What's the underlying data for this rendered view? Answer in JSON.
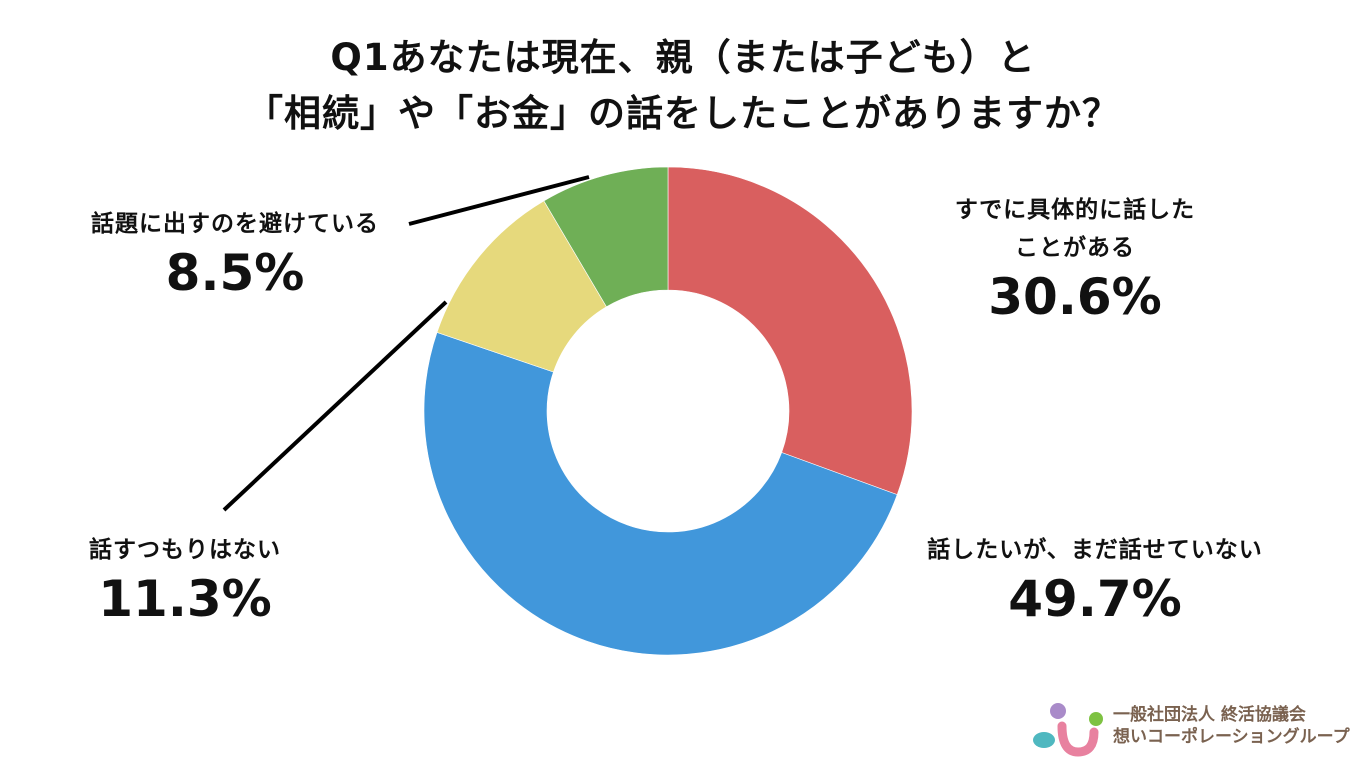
{
  "title": {
    "line1": "Q1あなたは現在、親（または子ども）と",
    "line2": "「相続」や「お金」の話をしたことがありますか？"
  },
  "labels": {
    "talked": {
      "name_line1": "すでに具体的に話した",
      "name_line2": "ことがある",
      "pct": "30.6%"
    },
    "want": {
      "name": "話したいが、まだ話せていない",
      "pct": "49.7%"
    },
    "no_intent": {
      "name": "話すつもりはない",
      "pct": "11.3%"
    },
    "avoid": {
      "name": "話題に出すのを避けている",
      "pct": "8.5%"
    }
  },
  "logo": {
    "line1": "一般社団法人 終活協議会",
    "line2": "想いコーポレーショングループ",
    "colors": {
      "purple": "#a98bc9",
      "green": "#7ec242",
      "pink": "#e8819f",
      "teal": "#4fb8c0",
      "text": "#7a6250"
    }
  },
  "chart_data": {
    "type": "pie",
    "subtype": "donut",
    "title": "Q1あなたは現在、親（または子ども）と「相続」や「お金」の話をしたことがありますか？",
    "categories": [
      "すでに具体的に話したことがある",
      "話したいが、まだ話せていない",
      "話すつもりはない",
      "話題に出すのを避けている"
    ],
    "values": [
      30.6,
      49.7,
      11.3,
      8.5
    ],
    "unit": "%",
    "colors": [
      "#d95f5f",
      "#4197db",
      "#e6d97c",
      "#6faf56"
    ],
    "start_angle": "12 o'clock, clockwise",
    "legend": "none (direct labels)"
  }
}
